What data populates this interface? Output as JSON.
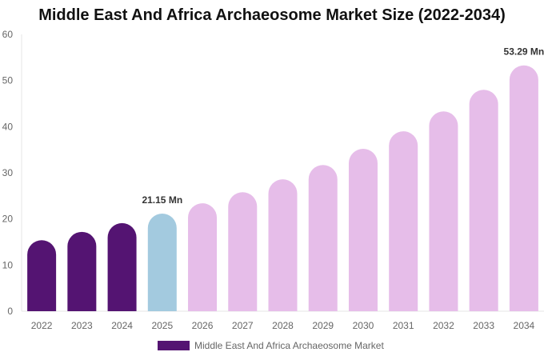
{
  "chart_data": {
    "type": "bar",
    "title": "Middle East And Africa Archaeosome Market Size (2022-2034)",
    "categories": [
      "2022",
      "2023",
      "2024",
      "2025",
      "2026",
      "2027",
      "2028",
      "2029",
      "2030",
      "2031",
      "2032",
      "2033",
      "2034"
    ],
    "series": [
      {
        "name": "Middle East And Africa Archaeosome Market",
        "values": [
          15.4,
          17.2,
          19.1,
          21.15,
          23.4,
          25.8,
          28.6,
          31.7,
          35.2,
          39.0,
          43.3,
          48.0,
          53.29
        ]
      }
    ],
    "data_labels": {
      "3": "21.15 Mn",
      "12": "53.29 Mn"
    },
    "ylim": [
      0,
      60
    ],
    "yticks": [
      0,
      10,
      20,
      30,
      40,
      50,
      60
    ],
    "grid": false,
    "legend_position": "bottom",
    "colors": {
      "historic": "#541472",
      "current": "#a3cadf",
      "forecast": "#e6bde9"
    }
  }
}
